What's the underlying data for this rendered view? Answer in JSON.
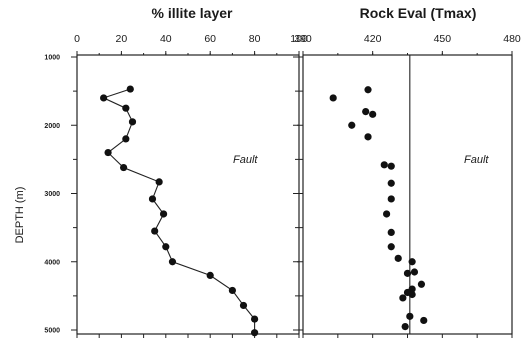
{
  "ylabel": "DEPTH (m)",
  "depth_ticks": [
    1000,
    2000,
    3000,
    4000,
    5000
  ],
  "chart_data": [
    {
      "type": "line",
      "title": "% illite layer",
      "xlabel": "",
      "ylabel": "DEPTH (m)",
      "xlim": [
        0,
        100
      ],
      "ylim": [
        5000,
        1000
      ],
      "y_inverted": true,
      "xticks": [
        0,
        20,
        40,
        60,
        80,
        100
      ],
      "annotation": "Fault",
      "points": [
        {
          "x": 24,
          "y": 1470
        },
        {
          "x": 12,
          "y": 1600
        },
        {
          "x": 22,
          "y": 1750
        },
        {
          "x": 25,
          "y": 1950
        },
        {
          "x": 22,
          "y": 2200
        },
        {
          "x": 14,
          "y": 2400
        },
        {
          "x": 21,
          "y": 2620
        },
        {
          "x": 37,
          "y": 2830
        },
        {
          "x": 34,
          "y": 3080
        },
        {
          "x": 39,
          "y": 3300
        },
        {
          "x": 35,
          "y": 3550
        },
        {
          "x": 40,
          "y": 3780
        },
        {
          "x": 43,
          "y": 4000
        },
        {
          "x": 60,
          "y": 4200
        },
        {
          "x": 70,
          "y": 4420
        },
        {
          "x": 75,
          "y": 4640
        },
        {
          "x": 80,
          "y": 4840
        },
        {
          "x": 80,
          "y": 5040
        }
      ]
    },
    {
      "type": "scatter",
      "title": "Rock Eval  (Tmax)",
      "xlabel": "",
      "ylabel": "",
      "xlim": [
        390,
        480
      ],
      "ylim": [
        5000,
        1000
      ],
      "y_inverted": true,
      "xticks": [
        390,
        420,
        450,
        480
      ],
      "reference_line_x": 436,
      "annotation": "Fault",
      "points": [
        {
          "x": 418,
          "y": 1480
        },
        {
          "x": 403,
          "y": 1600
        },
        {
          "x": 417,
          "y": 1800
        },
        {
          "x": 420,
          "y": 1840
        },
        {
          "x": 411,
          "y": 2000
        },
        {
          "x": 418,
          "y": 2170
        },
        {
          "x": 425,
          "y": 2580
        },
        {
          "x": 428,
          "y": 2600
        },
        {
          "x": 428,
          "y": 2850
        },
        {
          "x": 428,
          "y": 3080
        },
        {
          "x": 426,
          "y": 3300
        },
        {
          "x": 428,
          "y": 3570
        },
        {
          "x": 428,
          "y": 3780
        },
        {
          "x": 431,
          "y": 3950
        },
        {
          "x": 437,
          "y": 4000
        },
        {
          "x": 438,
          "y": 4150
        },
        {
          "x": 435,
          "y": 4170
        },
        {
          "x": 441,
          "y": 4330
        },
        {
          "x": 437,
          "y": 4400
        },
        {
          "x": 435,
          "y": 4450
        },
        {
          "x": 437,
          "y": 4480
        },
        {
          "x": 433,
          "y": 4530
        },
        {
          "x": 436,
          "y": 4800
        },
        {
          "x": 442,
          "y": 4860
        },
        {
          "x": 434,
          "y": 4950
        }
      ]
    }
  ]
}
